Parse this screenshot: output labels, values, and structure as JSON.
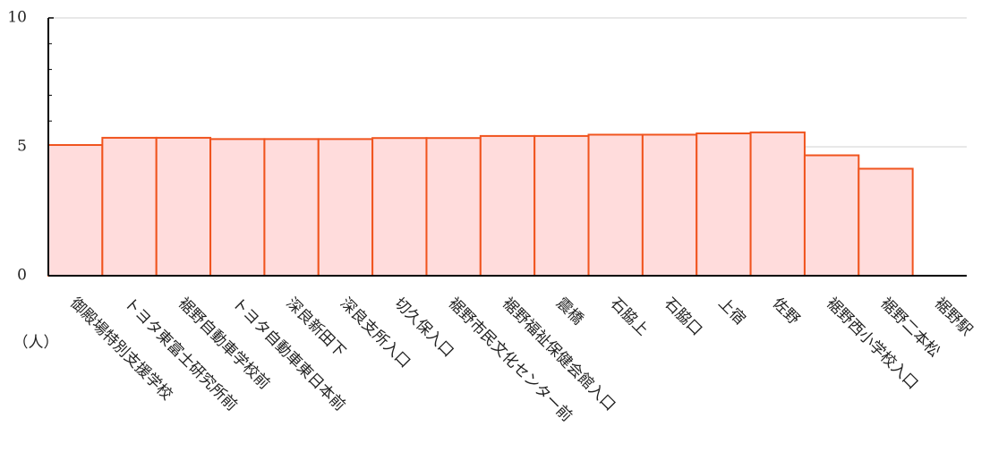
{
  "chart_data": {
    "type": "bar",
    "unit_label": "（人）",
    "categories": [
      "御殿場特別支援学校",
      "トヨタ東富士研究所前",
      "裾野自動車学校前",
      "トヨタ自動車東日本前",
      "深良新田下",
      "深良支所入口",
      "切久保入口",
      "裾野市民文化センター前",
      "裾野福祉保健会館入口",
      "震橋",
      "石脇上",
      "石脇口",
      "上宿",
      "佐野",
      "裾野西小学校入口",
      "裾野二本松",
      "裾野駅"
    ],
    "values": [
      5.07,
      5.35,
      5.35,
      5.3,
      5.3,
      5.3,
      5.34,
      5.34,
      5.42,
      5.42,
      5.47,
      5.47,
      5.52,
      5.56,
      4.67,
      4.15,
      0
    ],
    "color": "#ffdcdc",
    "edge_color": "#f0541e",
    "ylim": [
      0,
      10
    ],
    "yticks": [
      0,
      5,
      10
    ],
    "minor_yticks": [
      1,
      2,
      3,
      4,
      6,
      7,
      8,
      9
    ],
    "grid": true
  }
}
